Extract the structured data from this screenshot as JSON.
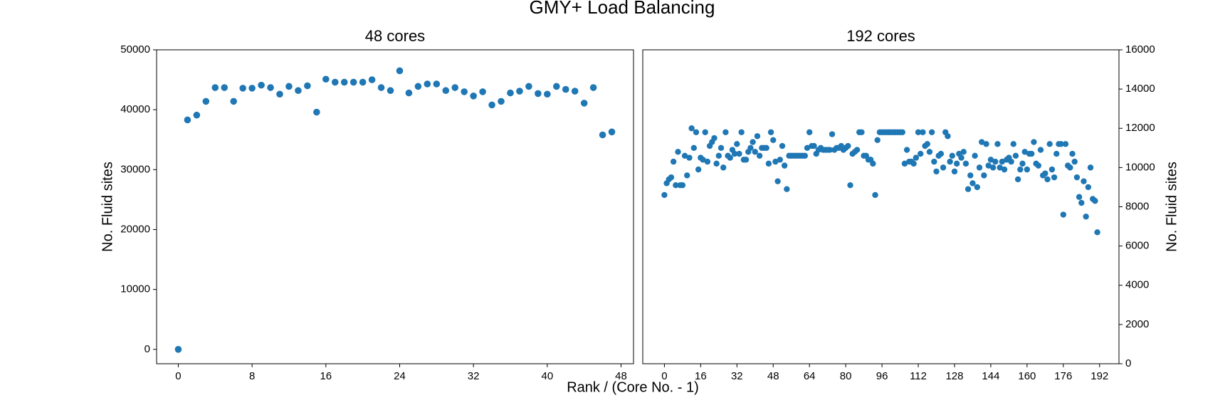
{
  "title": "GMY+ Load Balancing",
  "xlabel": "Rank / (Core No. - 1)",
  "chart_data": [
    {
      "type": "scatter",
      "title": "48 cores",
      "ylabel": "No. Fluid sites",
      "y_axis_side": "left",
      "color": "#1f77b4",
      "x": [
        0,
        1,
        2,
        3,
        4,
        5,
        6,
        7,
        8,
        9,
        10,
        11,
        12,
        13,
        14,
        15,
        16,
        17,
        18,
        19,
        20,
        21,
        22,
        23,
        24,
        25,
        26,
        27,
        28,
        29,
        30,
        31,
        32,
        33,
        34,
        35,
        36,
        37,
        38,
        39,
        40,
        41,
        42,
        43,
        44,
        45,
        46,
        47
      ],
      "values": [
        0,
        38300,
        39100,
        41400,
        43700,
        43700,
        41400,
        43600,
        43600,
        44100,
        43700,
        42600,
        43900,
        43200,
        44000,
        39600,
        45100,
        44600,
        44600,
        44600,
        44600,
        45000,
        43700,
        43200,
        46500,
        42800,
        43900,
        44300,
        44300,
        43200,
        43700,
        43000,
        42300,
        43000,
        40800,
        41400,
        42800,
        43100,
        43900,
        42700,
        42600,
        43900,
        43400,
        43100,
        41100,
        43700,
        35800,
        36300
      ],
      "xlim": [
        -2.35,
        49.35
      ],
      "xticks": [
        0,
        8,
        16,
        24,
        32,
        40,
        48
      ],
      "ylim": [
        -2400,
        50000
      ],
      "yticks": [
        0,
        10000,
        20000,
        30000,
        40000,
        50000
      ]
    },
    {
      "type": "scatter",
      "title": "192 cores",
      "ylabel": "No. Fluid sites",
      "y_axis_side": "right",
      "color": "#1f77b4",
      "x": [
        0,
        1,
        2,
        3,
        4,
        5,
        6,
        7,
        8,
        9,
        10,
        11,
        12,
        13,
        14,
        15,
        16,
        17,
        18,
        19,
        20,
        21,
        22,
        23,
        24,
        25,
        26,
        27,
        28,
        29,
        30,
        31,
        32,
        33,
        34,
        35,
        36,
        37,
        38,
        39,
        40,
        41,
        42,
        43,
        44,
        45,
        46,
        47,
        48,
        49,
        50,
        51,
        52,
        53,
        54,
        55,
        56,
        57,
        58,
        59,
        60,
        61,
        62,
        63,
        64,
        65,
        66,
        67,
        68,
        69,
        70,
        71,
        72,
        73,
        74,
        75,
        76,
        77,
        78,
        79,
        80,
        81,
        82,
        83,
        84,
        85,
        86,
        87,
        88,
        89,
        90,
        91,
        92,
        93,
        94,
        95,
        96,
        97,
        98,
        99,
        100,
        101,
        102,
        103,
        104,
        105,
        106,
        107,
        108,
        109,
        110,
        111,
        112,
        113,
        114,
        115,
        116,
        117,
        118,
        119,
        120,
        121,
        122,
        123,
        124,
        125,
        126,
        127,
        128,
        129,
        130,
        131,
        132,
        133,
        134,
        135,
        136,
        137,
        138,
        139,
        140,
        141,
        142,
        143,
        144,
        145,
        146,
        147,
        148,
        149,
        150,
        151,
        152,
        153,
        154,
        155,
        156,
        157,
        158,
        159,
        160,
        161,
        162,
        163,
        164,
        165,
        166,
        167,
        168,
        169,
        170,
        171,
        172,
        173,
        174,
        175,
        176,
        177,
        178,
        179,
        180,
        181,
        182,
        183,
        184,
        185,
        186,
        187,
        188,
        189,
        190,
        191
      ],
      "values": [
        8600,
        9200,
        9400,
        9500,
        10300,
        9100,
        10800,
        9100,
        9100,
        10600,
        9600,
        10500,
        12000,
        11000,
        11800,
        9900,
        10500,
        10400,
        11800,
        10300,
        11100,
        11300,
        11500,
        10200,
        10600,
        11000,
        10000,
        11800,
        10600,
        10500,
        10900,
        10700,
        11200,
        10700,
        11800,
        10400,
        10400,
        10800,
        11000,
        11300,
        10800,
        11600,
        10600,
        11000,
        11000,
        11000,
        10200,
        11800,
        11400,
        10300,
        9300,
        10400,
        11100,
        10100,
        8900,
        10600,
        10600,
        10600,
        10600,
        10600,
        10600,
        10600,
        10600,
        11000,
        11800,
        11100,
        11100,
        10700,
        10900,
        11000,
        10900,
        10900,
        10900,
        10900,
        11700,
        10900,
        11000,
        11000,
        11100,
        10900,
        11000,
        11100,
        9100,
        10700,
        10800,
        10900,
        11800,
        11800,
        10600,
        10600,
        10400,
        10400,
        10200,
        8600,
        11400,
        11800,
        11800,
        11800,
        11800,
        11800,
        11800,
        11800,
        11800,
        11800,
        11800,
        11800,
        10200,
        10900,
        10300,
        10300,
        10200,
        10500,
        11800,
        10700,
        11800,
        11100,
        11200,
        10800,
        11800,
        10300,
        9800,
        10600,
        10700,
        10000,
        11800,
        11600,
        10300,
        10600,
        9800,
        10200,
        10700,
        10500,
        10800,
        10200,
        8900,
        9600,
        9200,
        10600,
        9000,
        10000,
        11300,
        9600,
        11200,
        10100,
        10400,
        10000,
        10300,
        11200,
        10000,
        10300,
        9900,
        10400,
        10500,
        10300,
        11200,
        10600,
        9400,
        9900,
        10200,
        10800,
        9900,
        10700,
        10700,
        11300,
        10200,
        10100,
        10900,
        9600,
        9700,
        9400,
        11200,
        9900,
        9500,
        10700,
        11200,
        11200,
        7600,
        11200,
        10100,
        10000,
        10700,
        10300,
        9500,
        8500,
        8200,
        9300,
        7500,
        9000,
        10000,
        8400,
        8300,
        6700
      ],
      "xlim": [
        -9.55,
        200.55
      ],
      "xticks": [
        0,
        16,
        32,
        48,
        64,
        80,
        96,
        112,
        128,
        144,
        160,
        176,
        192
      ],
      "ylim": [
        0,
        16000
      ],
      "yticks": [
        0,
        2000,
        4000,
        6000,
        8000,
        10000,
        12000,
        14000,
        16000
      ]
    }
  ]
}
